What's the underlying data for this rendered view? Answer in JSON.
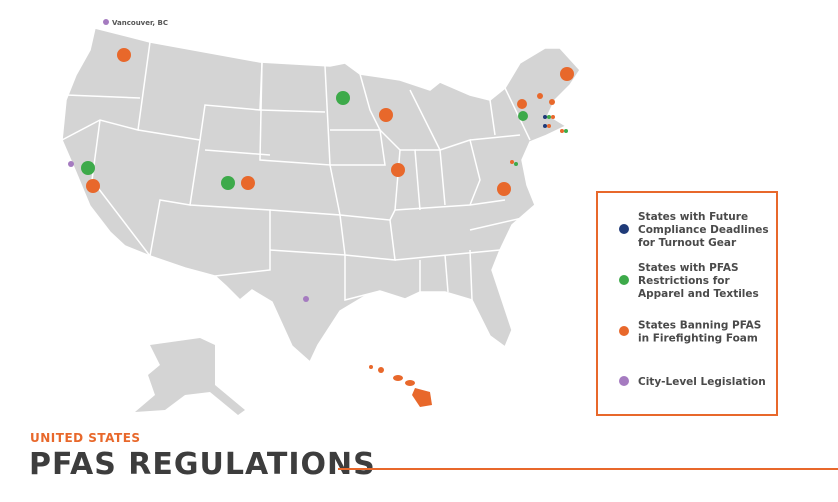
{
  "header": {
    "subtitle": "UNITED STATES",
    "title": "PFAS REGULATIONS"
  },
  "map": {
    "city_label": "Vancouver, BC"
  },
  "legend": {
    "items": [
      {
        "label": [
          "States with Future",
          "Compliance Deadlines",
          "for Turnout Gear"
        ]
      },
      {
        "label": [
          "States with PFAS",
          "Restrictions for",
          "Apparel and Textiles"
        ]
      },
      {
        "label": [
          "States Banning PFAS",
          "in Firefighting Foam"
        ]
      },
      {
        "label": [
          "City-Level Legislation"
        ]
      }
    ]
  }
}
